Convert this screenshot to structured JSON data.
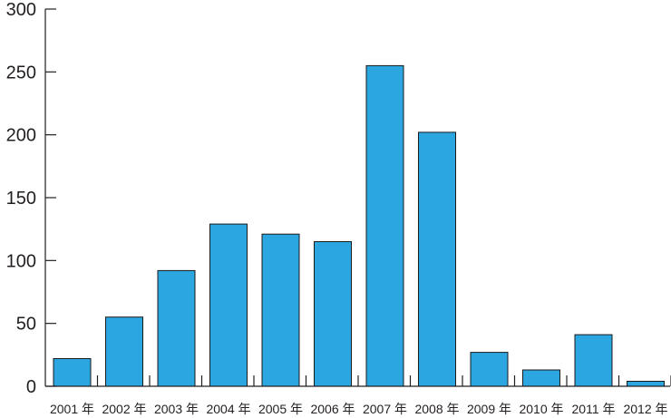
{
  "chart_data": {
    "type": "bar",
    "categories": [
      "2001 年",
      "2002 年",
      "2003 年",
      "2004 年",
      "2005 年",
      "2006 年",
      "2007 年",
      "2008 年",
      "2009 年",
      "2010 年",
      "2011 年",
      "2012 年"
    ],
    "values": [
      22,
      55,
      92,
      129,
      121,
      115,
      255,
      202,
      27,
      13,
      41,
      4
    ],
    "ylim": [
      0,
      300
    ],
    "yticks": [
      0,
      50,
      100,
      150,
      200,
      250,
      300
    ],
    "title": "",
    "xlabel": "",
    "ylabel": "",
    "grid": false,
    "bar_color": "#2ba6e1"
  }
}
